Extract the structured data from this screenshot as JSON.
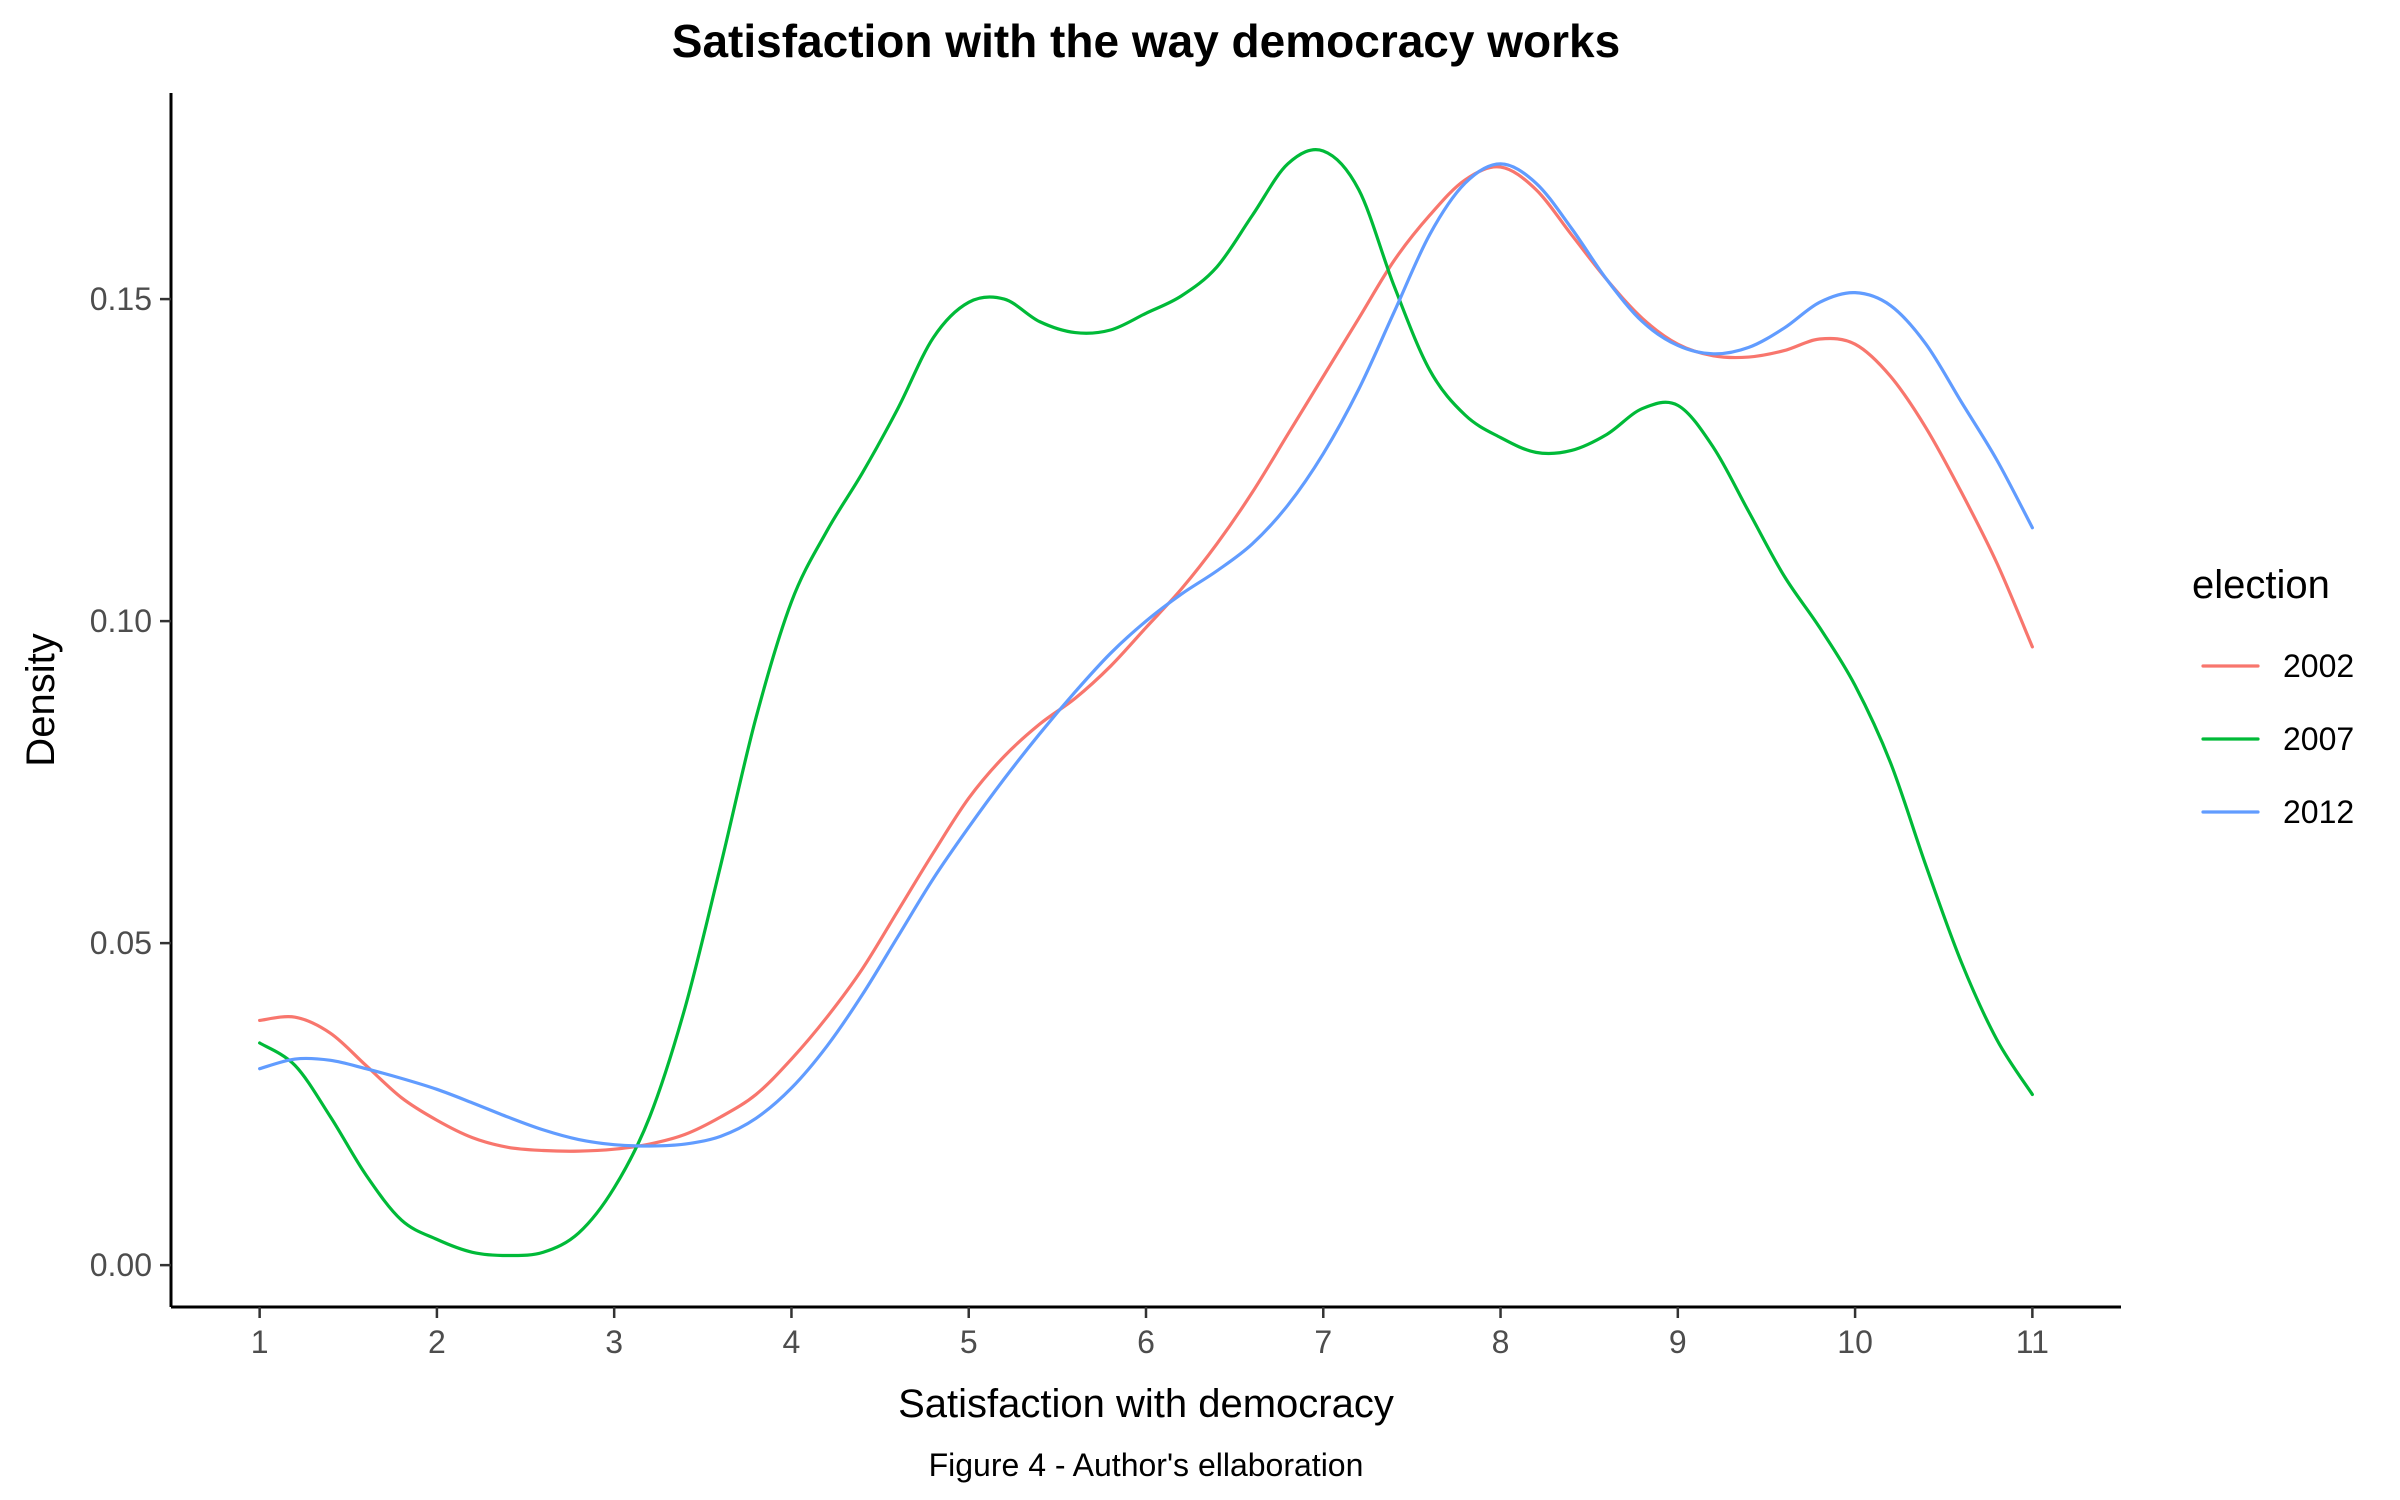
{
  "chart_data": {
    "type": "line",
    "title": "Satisfaction with the way democracy works",
    "xlabel": "Satisfaction with democracy",
    "ylabel": "Density",
    "caption": "Figure 4 - Author's ellaboration",
    "xlim": [
      0.5,
      11.5
    ],
    "ylim": [
      -0.0065,
      0.182
    ],
    "x_ticks": [
      1,
      2,
      3,
      4,
      5,
      6,
      7,
      8,
      9,
      10,
      11
    ],
    "y_ticks": [
      0.0,
      0.05,
      0.1,
      0.15
    ],
    "y_tick_labels": [
      "0.00",
      "0.05",
      "0.10",
      "0.15"
    ],
    "grid": false,
    "legend": {
      "title": "election",
      "position": "right"
    },
    "series": [
      {
        "name": "2002",
        "color": "#F8766D",
        "points": [
          [
            1.0,
            0.038
          ],
          [
            1.2,
            0.0385
          ],
          [
            1.4,
            0.036
          ],
          [
            1.6,
            0.031
          ],
          [
            1.8,
            0.026
          ],
          [
            2.0,
            0.0225
          ],
          [
            2.2,
            0.0198
          ],
          [
            2.4,
            0.0183
          ],
          [
            2.6,
            0.0178
          ],
          [
            2.8,
            0.0177
          ],
          [
            3.0,
            0.018
          ],
          [
            3.2,
            0.0188
          ],
          [
            3.4,
            0.0203
          ],
          [
            3.6,
            0.023
          ],
          [
            3.8,
            0.0265
          ],
          [
            4.0,
            0.032
          ],
          [
            4.2,
            0.0385
          ],
          [
            4.4,
            0.046
          ],
          [
            4.6,
            0.055
          ],
          [
            4.8,
            0.064
          ],
          [
            5.0,
            0.0725
          ],
          [
            5.2,
            0.079
          ],
          [
            5.4,
            0.084
          ],
          [
            5.6,
            0.088
          ],
          [
            5.8,
            0.093
          ],
          [
            6.0,
            0.099
          ],
          [
            6.2,
            0.105
          ],
          [
            6.4,
            0.112
          ],
          [
            6.6,
            0.12
          ],
          [
            6.8,
            0.129
          ],
          [
            7.0,
            0.138
          ],
          [
            7.2,
            0.147
          ],
          [
            7.4,
            0.156
          ],
          [
            7.6,
            0.163
          ],
          [
            7.8,
            0.1685
          ],
          [
            8.0,
            0.1705
          ],
          [
            8.2,
            0.167
          ],
          [
            8.4,
            0.16
          ],
          [
            8.6,
            0.153
          ],
          [
            8.8,
            0.147
          ],
          [
            9.0,
            0.143
          ],
          [
            9.2,
            0.1412
          ],
          [
            9.4,
            0.141
          ],
          [
            9.6,
            0.142
          ],
          [
            9.8,
            0.1438
          ],
          [
            10.0,
            0.143
          ],
          [
            10.2,
            0.138
          ],
          [
            10.4,
            0.13
          ],
          [
            10.6,
            0.12
          ],
          [
            10.8,
            0.109
          ],
          [
            11.0,
            0.096
          ]
        ]
      },
      {
        "name": "2007",
        "color": "#00BA38",
        "points": [
          [
            1.0,
            0.0345
          ],
          [
            1.2,
            0.031
          ],
          [
            1.4,
            0.023
          ],
          [
            1.6,
            0.014
          ],
          [
            1.8,
            0.007
          ],
          [
            2.0,
            0.004
          ],
          [
            2.2,
            0.002
          ],
          [
            2.4,
            0.0015
          ],
          [
            2.6,
            0.002
          ],
          [
            2.8,
            0.005
          ],
          [
            3.0,
            0.012
          ],
          [
            3.2,
            0.023
          ],
          [
            3.4,
            0.04
          ],
          [
            3.6,
            0.062
          ],
          [
            3.8,
            0.085
          ],
          [
            4.0,
            0.103
          ],
          [
            4.2,
            0.114
          ],
          [
            4.4,
            0.123
          ],
          [
            4.6,
            0.133
          ],
          [
            4.8,
            0.144
          ],
          [
            5.0,
            0.1495
          ],
          [
            5.2,
            0.15
          ],
          [
            5.4,
            0.1465
          ],
          [
            5.6,
            0.1448
          ],
          [
            5.8,
            0.1452
          ],
          [
            6.0,
            0.1478
          ],
          [
            6.2,
            0.1505
          ],
          [
            6.4,
            0.155
          ],
          [
            6.6,
            0.163
          ],
          [
            6.8,
            0.171
          ],
          [
            7.0,
            0.173
          ],
          [
            7.2,
            0.167
          ],
          [
            7.4,
            0.152
          ],
          [
            7.6,
            0.139
          ],
          [
            7.8,
            0.132
          ],
          [
            8.0,
            0.1285
          ],
          [
            8.2,
            0.1262
          ],
          [
            8.4,
            0.1265
          ],
          [
            8.6,
            0.129
          ],
          [
            8.8,
            0.133
          ],
          [
            9.0,
            0.1335
          ],
          [
            9.2,
            0.127
          ],
          [
            9.4,
            0.117
          ],
          [
            9.6,
            0.107
          ],
          [
            9.8,
            0.099
          ],
          [
            10.0,
            0.09
          ],
          [
            10.2,
            0.078
          ],
          [
            10.4,
            0.062
          ],
          [
            10.6,
            0.047
          ],
          [
            10.8,
            0.035
          ],
          [
            11.0,
            0.0265
          ]
        ]
      },
      {
        "name": "2012",
        "color": "#619CFF",
        "points": [
          [
            1.0,
            0.0305
          ],
          [
            1.2,
            0.032
          ],
          [
            1.4,
            0.0318
          ],
          [
            1.6,
            0.0305
          ],
          [
            1.8,
            0.029
          ],
          [
            2.0,
            0.0273
          ],
          [
            2.2,
            0.0252
          ],
          [
            2.4,
            0.023
          ],
          [
            2.6,
            0.021
          ],
          [
            2.8,
            0.0195
          ],
          [
            3.0,
            0.0187
          ],
          [
            3.2,
            0.0185
          ],
          [
            3.4,
            0.0188
          ],
          [
            3.6,
            0.02
          ],
          [
            3.8,
            0.0228
          ],
          [
            4.0,
            0.0275
          ],
          [
            4.2,
            0.034
          ],
          [
            4.4,
            0.042
          ],
          [
            4.6,
            0.051
          ],
          [
            4.8,
            0.06
          ],
          [
            5.0,
            0.068
          ],
          [
            5.2,
            0.0755
          ],
          [
            5.4,
            0.0825
          ],
          [
            5.6,
            0.089
          ],
          [
            5.8,
            0.095
          ],
          [
            6.0,
            0.1
          ],
          [
            6.2,
            0.1042
          ],
          [
            6.4,
            0.1078
          ],
          [
            6.6,
            0.112
          ],
          [
            6.8,
            0.118
          ],
          [
            7.0,
            0.126
          ],
          [
            7.2,
            0.136
          ],
          [
            7.4,
            0.148
          ],
          [
            7.6,
            0.16
          ],
          [
            7.8,
            0.168
          ],
          [
            8.0,
            0.171
          ],
          [
            8.2,
            0.168
          ],
          [
            8.4,
            0.161
          ],
          [
            8.6,
            0.153
          ],
          [
            8.8,
            0.1465
          ],
          [
            9.0,
            0.1428
          ],
          [
            9.2,
            0.1415
          ],
          [
            9.4,
            0.1425
          ],
          [
            9.6,
            0.1455
          ],
          [
            9.8,
            0.1495
          ],
          [
            10.0,
            0.151
          ],
          [
            10.2,
            0.149
          ],
          [
            10.4,
            0.143
          ],
          [
            10.6,
            0.134
          ],
          [
            10.8,
            0.125
          ],
          [
            11.0,
            0.1145
          ]
        ]
      }
    ]
  }
}
